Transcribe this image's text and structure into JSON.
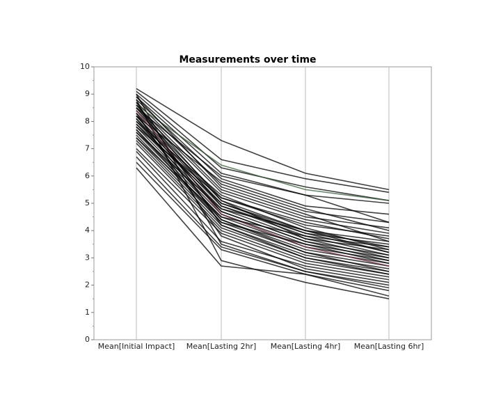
{
  "chart_data": {
    "type": "line",
    "title": "Measurements over time",
    "categories": [
      "Mean[Initial Impact]",
      "Mean[Lasting 2hr]",
      "Mean[Lasting 4hr]",
      "Mean[Lasting 6hr]"
    ],
    "ylim": [
      0,
      10
    ],
    "yticks": [
      0,
      1,
      2,
      3,
      4,
      5,
      6,
      7,
      8,
      9,
      10
    ],
    "grid": "x",
    "series": [
      {
        "color": "#000000",
        "values": [
          9.2,
          7.3,
          6.1,
          5.5
        ]
      },
      {
        "color": "#000000",
        "values": [
          9.1,
          6.6,
          5.9,
          5.4
        ]
      },
      {
        "color": "#000000",
        "values": [
          9.0,
          6.3,
          5.6,
          5.1
        ]
      },
      {
        "color": "#000000",
        "values": [
          8.9,
          6.1,
          5.3,
          5.0
        ]
      },
      {
        "color": "#000000",
        "values": [
          8.8,
          5.9,
          4.9,
          4.6
        ]
      },
      {
        "color": "#000000",
        "values": [
          8.7,
          5.7,
          4.7,
          4.3
        ]
      },
      {
        "color": "#000000",
        "values": [
          8.6,
          5.5,
          4.5,
          4.1
        ]
      },
      {
        "color": "#000000",
        "values": [
          8.5,
          5.4,
          4.4,
          3.9
        ]
      },
      {
        "color": "#000000",
        "values": [
          8.4,
          5.2,
          4.2,
          3.8
        ]
      },
      {
        "color": "#000000",
        "values": [
          8.3,
          5.1,
          4.0,
          3.6
        ]
      },
      {
        "color": "#000000",
        "values": [
          8.2,
          5.0,
          3.9,
          3.5
        ]
      },
      {
        "color": "#000000",
        "values": [
          8.1,
          4.9,
          3.8,
          3.4
        ]
      },
      {
        "color": "#000000",
        "values": [
          8.0,
          4.8,
          3.7,
          3.3
        ]
      },
      {
        "color": "#000000",
        "values": [
          7.9,
          4.7,
          3.6,
          3.1
        ]
      },
      {
        "color": "#000000",
        "values": [
          7.8,
          4.6,
          3.5,
          3.0
        ]
      },
      {
        "color": "#000000",
        "values": [
          7.7,
          4.5,
          3.4,
          2.9
        ]
      },
      {
        "color": "#000000",
        "values": [
          7.6,
          4.4,
          3.3,
          2.8
        ]
      },
      {
        "color": "#000000",
        "values": [
          7.5,
          4.3,
          3.2,
          2.7
        ]
      },
      {
        "color": "#000000",
        "values": [
          7.4,
          4.2,
          3.1,
          2.6
        ]
      },
      {
        "color": "#000000",
        "values": [
          7.3,
          4.1,
          3.0,
          2.5
        ]
      },
      {
        "color": "#000000",
        "values": [
          7.2,
          4.0,
          2.9,
          2.4
        ]
      },
      {
        "color": "#000000",
        "values": [
          7.0,
          3.9,
          2.8,
          2.3
        ]
      },
      {
        "color": "#000000",
        "values": [
          6.9,
          3.6,
          2.7,
          2.2
        ]
      },
      {
        "color": "#000000",
        "values": [
          6.7,
          3.4,
          2.5,
          2.0
        ]
      },
      {
        "color": "#000000",
        "values": [
          6.5,
          3.3,
          2.4,
          1.8
        ]
      },
      {
        "color": "#000000",
        "values": [
          6.3,
          2.7,
          2.4,
          1.6
        ]
      },
      {
        "color": "#000000",
        "values": [
          8.8,
          2.9,
          2.1,
          1.5
        ]
      },
      {
        "color": "#000000",
        "values": [
          9.0,
          3.5,
          2.5,
          1.9
        ]
      },
      {
        "color": "#000000",
        "values": [
          8.5,
          6.0,
          5.3,
          4.3
        ]
      },
      {
        "color": "#3a5a3a",
        "values": [
          8.6,
          6.4,
          5.5,
          5.1
        ]
      },
      {
        "color": "#000000",
        "values": [
          8.2,
          5.8,
          4.8,
          4.0
        ]
      },
      {
        "color": "#000000",
        "values": [
          8.0,
          5.3,
          4.1,
          3.3
        ]
      },
      {
        "color": "#6a2a3a",
        "values": [
          8.4,
          4.6,
          3.4,
          2.7
        ]
      },
      {
        "color": "#000000",
        "values": [
          7.8,
          5.2,
          4.3,
          3.7
        ]
      },
      {
        "color": "#000000",
        "values": [
          8.7,
          4.2,
          3.0,
          2.4
        ]
      },
      {
        "color": "#000000",
        "values": [
          7.6,
          4.8,
          4.0,
          3.2
        ]
      },
      {
        "color": "#000000",
        "values": [
          8.3,
          3.8,
          2.6,
          2.1
        ]
      },
      {
        "color": "#000000",
        "values": [
          8.9,
          5.6,
          4.6,
          3.6
        ]
      },
      {
        "color": "#000000",
        "values": [
          7.4,
          4.5,
          3.8,
          3.1
        ]
      },
      {
        "color": "#000000",
        "values": [
          8.1,
          4.4,
          3.2,
          2.5
        ]
      },
      {
        "color": "#000000",
        "values": [
          8.5,
          4.9,
          3.9,
          3.2
        ]
      },
      {
        "color": "#000000",
        "values": [
          8.2,
          4.7,
          3.6,
          2.9
        ]
      },
      {
        "color": "#000000",
        "values": [
          7.9,
          5.0,
          4.0,
          3.4
        ]
      },
      {
        "color": "#000000",
        "values": [
          8.6,
          5.1,
          3.7,
          3.0
        ]
      },
      {
        "color": "#000000",
        "values": [
          7.7,
          4.3,
          3.5,
          2.8
        ]
      }
    ]
  }
}
